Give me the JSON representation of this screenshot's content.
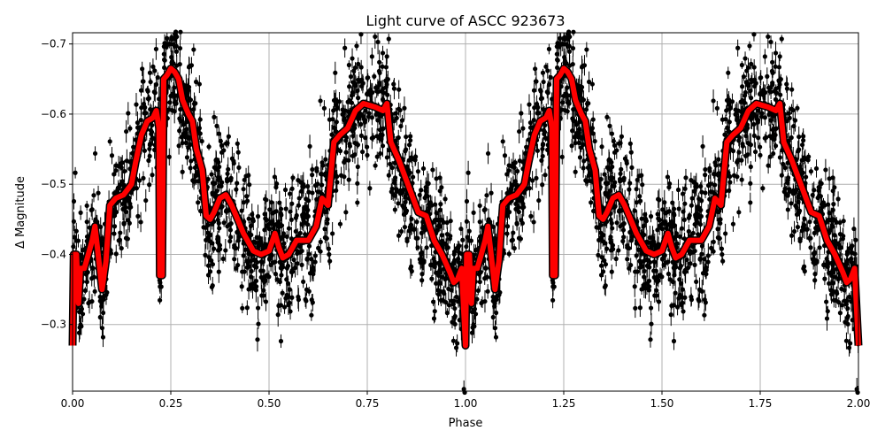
{
  "chart_data": {
    "type": "scatter",
    "title": "Light curve of ASCC 923673",
    "xlabel": "Phase",
    "ylabel": "Δ Magnitude",
    "xlim": [
      0,
      2
    ],
    "ylim": [
      -0.205,
      -0.716
    ],
    "y_inverted": true,
    "grid": true,
    "xticks": [
      0,
      0.25,
      0.5,
      0.75,
      1.0,
      1.25,
      1.5,
      1.75,
      2.0
    ],
    "xtick_labels": [
      "0.00",
      "0.25",
      "0.50",
      "0.75",
      "1.00",
      "1.25",
      "1.50",
      "1.75",
      "2.00"
    ],
    "yticks": [
      -0.7,
      -0.6,
      -0.5,
      -0.4,
      -0.3
    ],
    "ytick_labels": [
      "−0.7",
      "−0.6",
      "−0.5",
      "−0.4",
      "−0.3"
    ],
    "colors": {
      "points": "#000000",
      "fit": "#ff0000",
      "grid": "#b0b0b0"
    },
    "series": [
      {
        "kind": "errorbar-points",
        "note_visible": false
      },
      {
        "kind": "line",
        "period_repeat": true,
        "x": [
          0.0,
          0.003,
          0.01,
          0.015,
          0.02,
          0.03,
          0.04,
          0.05,
          0.057,
          0.065,
          0.075,
          0.085,
          0.095,
          0.11,
          0.13,
          0.15,
          0.16,
          0.175,
          0.19,
          0.205,
          0.213,
          0.22,
          0.222,
          0.228,
          0.232,
          0.24,
          0.25,
          0.26,
          0.27,
          0.28,
          0.295,
          0.305,
          0.315,
          0.33,
          0.34,
          0.35,
          0.36,
          0.375,
          0.39,
          0.405,
          0.42,
          0.435,
          0.45,
          0.46,
          0.48,
          0.5,
          0.515,
          0.525,
          0.535,
          0.55,
          0.57,
          0.6,
          0.62,
          0.635,
          0.65,
          0.665,
          0.68,
          0.7,
          0.72,
          0.74,
          0.77,
          0.79,
          0.8,
          0.81,
          0.83,
          0.86,
          0.88,
          0.9,
          0.92,
          0.94,
          0.96,
          0.97,
          0.98,
          0.99,
          1.0
        ],
        "y": [
          -0.27,
          -0.4,
          -0.4,
          -0.33,
          -0.38,
          -0.38,
          -0.4,
          -0.42,
          -0.44,
          -0.4,
          -0.35,
          -0.39,
          -0.47,
          -0.48,
          -0.485,
          -0.5,
          -0.53,
          -0.57,
          -0.59,
          -0.595,
          -0.605,
          -0.58,
          -0.37,
          -0.37,
          -0.65,
          -0.655,
          -0.665,
          -0.66,
          -0.65,
          -0.62,
          -0.6,
          -0.59,
          -0.55,
          -0.52,
          -0.455,
          -0.45,
          -0.46,
          -0.48,
          -0.485,
          -0.47,
          -0.45,
          -0.43,
          -0.415,
          -0.405,
          -0.4,
          -0.405,
          -0.43,
          -0.41,
          -0.395,
          -0.4,
          -0.42,
          -0.42,
          -0.44,
          -0.48,
          -0.47,
          -0.56,
          -0.57,
          -0.58,
          -0.605,
          -0.615,
          -0.61,
          -0.605,
          -0.615,
          -0.56,
          -0.535,
          -0.49,
          -0.46,
          -0.455,
          -0.42,
          -0.4,
          -0.375,
          -0.36,
          -0.365,
          -0.38,
          -0.27
        ]
      }
    ]
  }
}
